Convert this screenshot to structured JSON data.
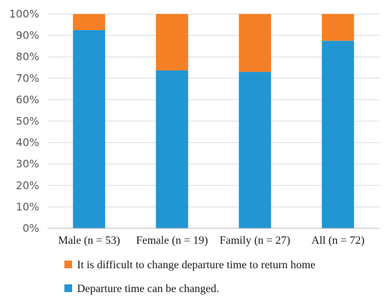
{
  "chart_data": {
    "type": "bar",
    "stacked": true,
    "percent": true,
    "categories": [
      "Male (n = 53)",
      "Female (n = 19)",
      "Family (n = 27)",
      "All (n = 72)"
    ],
    "series": [
      {
        "name": "Departure time can be changed.",
        "values": [
          92.5,
          73.7,
          73.0,
          87.5
        ],
        "color": "#2196d3"
      },
      {
        "name": "It is difficult to change departure time to return home",
        "values": [
          7.5,
          26.3,
          27.0,
          12.5
        ],
        "color": "#f58025"
      }
    ],
    "ylim": [
      0,
      100
    ],
    "yticks": [
      "0%",
      "10%",
      "20%",
      "30%",
      "40%",
      "50%",
      "60%",
      "70%",
      "80%",
      "90%",
      "100%"
    ],
    "grid": true,
    "legend": "bottom"
  }
}
